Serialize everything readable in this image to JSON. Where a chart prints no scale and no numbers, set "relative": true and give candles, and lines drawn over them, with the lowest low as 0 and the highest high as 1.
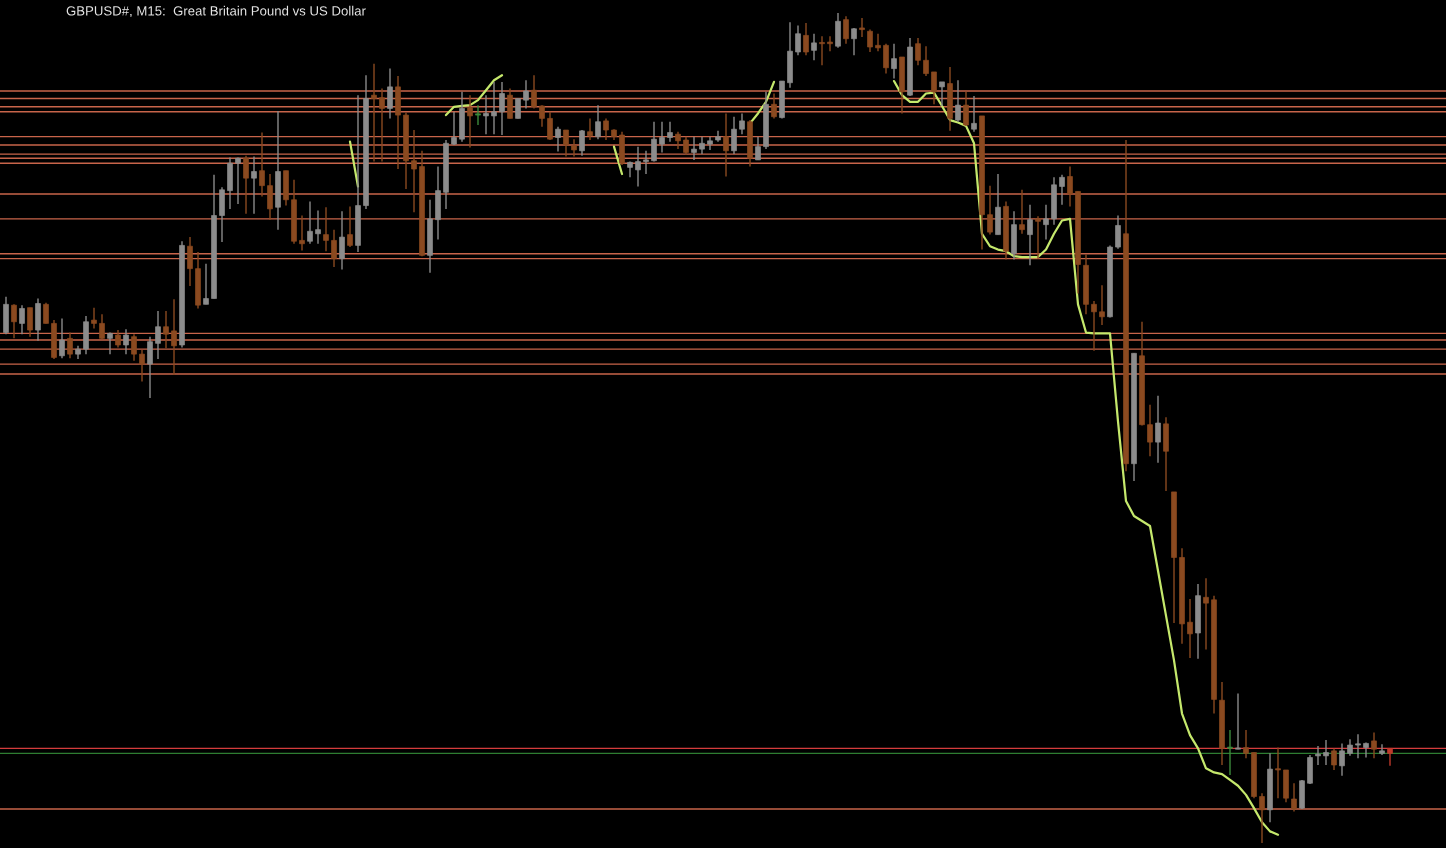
{
  "chart_data": {
    "type": "candlestick",
    "title": "GBPUSD#, M15:  Great Britain Pound vs US Dollar",
    "relative": true,
    "categories": [
      null,
      null,
      null,
      null,
      null,
      null,
      null,
      null,
      null,
      null,
      null,
      null,
      null,
      null,
      null,
      null,
      null,
      null,
      null,
      null,
      null,
      null,
      null,
      null,
      null,
      null,
      null,
      null,
      null,
      null,
      null,
      null,
      null,
      null,
      null,
      null,
      null,
      null,
      null,
      null,
      null,
      null,
      null,
      null,
      null,
      null,
      null,
      null,
      null,
      null,
      null,
      null,
      null,
      null,
      null,
      null,
      null,
      null,
      null,
      null,
      null,
      null,
      null,
      null,
      null,
      null,
      null,
      null,
      null,
      null,
      null,
      null,
      null,
      null,
      null,
      null,
      null,
      null,
      null,
      null,
      null,
      null,
      null,
      null,
      null,
      null,
      null,
      null,
      null,
      null,
      null,
      null,
      null,
      null,
      null,
      null,
      null,
      null,
      null,
      null,
      null,
      null,
      null,
      null,
      null,
      null,
      null,
      null,
      null,
      null,
      null,
      null,
      null,
      null,
      null,
      null,
      null,
      null,
      null,
      null,
      null,
      null,
      null,
      null,
      null,
      null,
      null,
      null,
      null,
      null,
      null,
      null,
      null,
      null,
      null,
      null,
      null,
      null,
      null,
      null,
      null,
      null,
      null,
      null,
      null,
      null,
      null,
      null,
      null,
      null,
      null,
      null,
      null,
      null,
      null,
      null,
      null,
      null,
      null,
      null,
      null,
      null,
      null,
      null,
      null,
      null,
      null,
      null,
      null,
      null,
      null,
      null,
      null,
      null
    ],
    "ohlc": [
      [
        0.615,
        0.658,
        0.613,
        0.649
      ],
      [
        0.648,
        0.649,
        0.608,
        0.628
      ],
      [
        0.626,
        0.648,
        0.613,
        0.644
      ],
      [
        0.645,
        0.645,
        0.61,
        0.618
      ],
      [
        0.618,
        0.656,
        0.605,
        0.65
      ],
      [
        0.649,
        0.651,
        0.626,
        0.626
      ],
      [
        0.626,
        0.63,
        0.583,
        0.585
      ],
      [
        0.587,
        0.632,
        0.584,
        0.606
      ],
      [
        0.608,
        0.615,
        0.584,
        0.589
      ],
      [
        0.589,
        0.599,
        0.583,
        0.595
      ],
      [
        0.595,
        0.635,
        0.589,
        0.628
      ],
      [
        0.63,
        0.645,
        0.62,
        0.626
      ],
      [
        0.626,
        0.637,
        0.607,
        0.608
      ],
      [
        0.608,
        0.615,
        0.589,
        0.614
      ],
      [
        0.612,
        0.618,
        0.597,
        0.6
      ],
      [
        0.6,
        0.619,
        0.589,
        0.612
      ],
      [
        0.61,
        0.613,
        0.581,
        0.589
      ],
      [
        0.589,
        0.594,
        0.556,
        0.577
      ],
      [
        0.577,
        0.61,
        0.536,
        0.604
      ],
      [
        0.602,
        0.641,
        0.583,
        0.622
      ],
      [
        0.622,
        0.641,
        0.596,
        0.613
      ],
      [
        0.617,
        0.655,
        0.564,
        0.599
      ],
      [
        0.6,
        0.725,
        0.597,
        0.72
      ],
      [
        0.719,
        0.73,
        0.671,
        0.692
      ],
      [
        0.692,
        0.712,
        0.644,
        0.648
      ],
      [
        0.649,
        0.698,
        0.649,
        0.656
      ],
      [
        0.656,
        0.805,
        0.656,
        0.756
      ],
      [
        0.756,
        0.79,
        0.724,
        0.787
      ],
      [
        0.786,
        0.826,
        0.764,
        0.819
      ],
      [
        0.819,
        0.826,
        0.77,
        0.825
      ],
      [
        0.825,
        0.828,
        0.758,
        0.801
      ],
      [
        0.801,
        0.827,
        0.758,
        0.809
      ],
      [
        0.81,
        0.856,
        0.779,
        0.792
      ],
      [
        0.792,
        0.806,
        0.751,
        0.764
      ],
      [
        0.766,
        0.882,
        0.739,
        0.809
      ],
      [
        0.81,
        0.81,
        0.768,
        0.775
      ],
      [
        0.775,
        0.799,
        0.722,
        0.725
      ],
      [
        0.726,
        0.756,
        0.714,
        0.722
      ],
      [
        0.725,
        0.773,
        0.722,
        0.737
      ],
      [
        0.734,
        0.762,
        0.722,
        0.739
      ],
      [
        0.733,
        0.766,
        0.713,
        0.726
      ],
      [
        0.726,
        0.739,
        0.694,
        0.704
      ],
      [
        0.704,
        0.761,
        0.691,
        0.73
      ],
      [
        0.733,
        0.767,
        0.718,
        0.72
      ],
      [
        0.72,
        0.901,
        0.712,
        0.768
      ],
      [
        0.768,
        0.925,
        0.764,
        0.897
      ],
      [
        0.901,
        0.939,
        0.821,
        0.897
      ],
      [
        0.898,
        0.909,
        0.821,
        0.885
      ],
      [
        0.885,
        0.933,
        0.873,
        0.911
      ],
      [
        0.911,
        0.924,
        0.812,
        0.877
      ],
      [
        0.877,
        0.88,
        0.788,
        0.822
      ],
      [
        0.822,
        0.859,
        0.76,
        0.812
      ],
      [
        0.815,
        0.834,
        0.707,
        0.708
      ],
      [
        0.708,
        0.775,
        0.687,
        0.752
      ],
      [
        0.751,
        0.815,
        0.727,
        0.786
      ],
      [
        0.784,
        0.847,
        0.764,
        0.843
      ],
      [
        0.842,
        0.881,
        0.841,
        0.85
      ],
      [
        0.848,
        0.905,
        0.845,
        0.885
      ],
      [
        0.886,
        0.901,
        0.838,
        0.876
      ],
      [
        0.877,
        0.889,
        0.865,
        0.877
      ],
      [
        0.876,
        0.901,
        0.854,
        0.879
      ],
      [
        0.876,
        0.917,
        0.854,
        0.881
      ],
      [
        0.881,
        0.917,
        0.853,
        0.903
      ],
      [
        0.901,
        0.909,
        0.873,
        0.873
      ],
      [
        0.873,
        0.897,
        0.873,
        0.897
      ],
      [
        0.895,
        0.919,
        0.885,
        0.906
      ],
      [
        0.907,
        0.925,
        0.885,
        0.887
      ],
      [
        0.888,
        0.889,
        0.863,
        0.873
      ],
      [
        0.873,
        0.881,
        0.847,
        0.848
      ],
      [
        0.85,
        0.863,
        0.833,
        0.86
      ],
      [
        0.859,
        0.859,
        0.827,
        0.841
      ],
      [
        0.84,
        0.848,
        0.827,
        0.835
      ],
      [
        0.834,
        0.859,
        0.828,
        0.858
      ],
      [
        0.857,
        0.873,
        0.847,
        0.852
      ],
      [
        0.851,
        0.889,
        0.848,
        0.869
      ],
      [
        0.87,
        0.873,
        0.847,
        0.859
      ],
      [
        0.859,
        0.86,
        0.847,
        0.851
      ],
      [
        0.853,
        0.857,
        0.817,
        0.819
      ],
      [
        0.814,
        0.821,
        0.802,
        0.82
      ],
      [
        0.811,
        0.839,
        0.791,
        0.821
      ],
      [
        0.821,
        0.834,
        0.806,
        0.823
      ],
      [
        0.822,
        0.869,
        0.821,
        0.848
      ],
      [
        0.842,
        0.869,
        0.832,
        0.85
      ],
      [
        0.85,
        0.869,
        0.845,
        0.856
      ],
      [
        0.854,
        0.857,
        0.836,
        0.846
      ],
      [
        0.847,
        0.851,
        0.829,
        0.832
      ],
      [
        0.832,
        0.851,
        0.823,
        0.836
      ],
      [
        0.836,
        0.851,
        0.83,
        0.843
      ],
      [
        0.842,
        0.851,
        0.835,
        0.846
      ],
      [
        0.847,
        0.858,
        0.845,
        0.851
      ],
      [
        0.851,
        0.879,
        0.803,
        0.834
      ],
      [
        0.834,
        0.875,
        0.83,
        0.86
      ],
      [
        0.86,
        0.879,
        0.854,
        0.87
      ],
      [
        0.869,
        0.871,
        0.815,
        0.825
      ],
      [
        0.823,
        0.851,
        0.823,
        0.839
      ],
      [
        0.839,
        0.905,
        0.836,
        0.89
      ],
      [
        0.89,
        0.903,
        0.873,
        0.875
      ],
      [
        0.874,
        0.918,
        0.873,
        0.918
      ],
      [
        0.916,
        0.989,
        0.91,
        0.954
      ],
      [
        0.953,
        0.985,
        0.949,
        0.975
      ],
      [
        0.973,
        0.988,
        0.949,
        0.953
      ],
      [
        0.955,
        0.975,
        0.943,
        0.964
      ],
      [
        0.964,
        0.972,
        0.937,
        0.963
      ],
      [
        0.965,
        0.972,
        0.954,
        0.963
      ],
      [
        0.96,
        1.0,
        0.958,
        0.99
      ],
      [
        0.992,
        0.996,
        0.963,
        0.969
      ],
      [
        0.969,
        0.982,
        0.949,
        0.981
      ],
      [
        0.982,
        0.994,
        0.971,
        0.98
      ],
      [
        0.978,
        0.98,
        0.953,
        0.959
      ],
      [
        0.961,
        0.975,
        0.954,
        0.958
      ],
      [
        0.961,
        0.963,
        0.927,
        0.934
      ],
      [
        0.933,
        0.963,
        0.921,
        0.945
      ],
      [
        0.947,
        0.947,
        0.879,
        0.905
      ],
      [
        0.901,
        0.97,
        0.9,
        0.959
      ],
      [
        0.963,
        0.97,
        0.937,
        0.943
      ],
      [
        0.943,
        0.96,
        0.924,
        0.927
      ],
      [
        0.929,
        0.929,
        0.89,
        0.905
      ],
      [
        0.911,
        0.917,
        0.888,
        0.917
      ],
      [
        0.915,
        0.935,
        0.858,
        0.873
      ],
      [
        0.871,
        0.919,
        0.869,
        0.889
      ],
      [
        0.889,
        0.905,
        0.864,
        0.865
      ],
      [
        0.86,
        0.9,
        0.857,
        0.867
      ],
      [
        0.876,
        0.876,
        0.715,
        0.757
      ],
      [
        0.757,
        0.792,
        0.733,
        0.736
      ],
      [
        0.733,
        0.806,
        0.733,
        0.766
      ],
      [
        0.767,
        0.773,
        0.703,
        0.713
      ],
      [
        0.71,
        0.761,
        0.703,
        0.745
      ],
      [
        0.745,
        0.787,
        0.734,
        0.739
      ],
      [
        0.733,
        0.769,
        0.696,
        0.751
      ],
      [
        0.752,
        0.755,
        0.704,
        0.749
      ],
      [
        0.745,
        0.769,
        0.727,
        0.752
      ],
      [
        0.752,
        0.802,
        0.745,
        0.793
      ],
      [
        0.791,
        0.805,
        0.769,
        0.802
      ],
      [
        0.803,
        0.815,
        0.767,
        0.782
      ],
      [
        0.785,
        0.785,
        0.662,
        0.697
      ],
      [
        0.696,
        0.709,
        0.637,
        0.649
      ],
      [
        0.649,
        0.653,
        0.593,
        0.64
      ],
      [
        0.64,
        0.672,
        0.624,
        0.634
      ],
      [
        0.634,
        0.72,
        0.633,
        0.718
      ],
      [
        0.718,
        0.756,
        0.716,
        0.744
      ],
      [
        0.734,
        0.847,
        0.448,
        0.457
      ],
      [
        0.457,
        0.59,
        0.436,
        0.59
      ],
      [
        0.587,
        0.628,
        0.503,
        0.504
      ],
      [
        0.504,
        0.528,
        0.466,
        0.483
      ],
      [
        0.483,
        0.539,
        0.458,
        0.506
      ],
      [
        0.505,
        0.513,
        0.424,
        0.472
      ],
      [
        0.423,
        0.423,
        0.265,
        0.344
      ],
      [
        0.344,
        0.355,
        0.24,
        0.264
      ],
      [
        0.266,
        0.294,
        0.223,
        0.252
      ],
      [
        0.253,
        0.312,
        0.222,
        0.298
      ],
      [
        0.296,
        0.319,
        0.233,
        0.289
      ],
      [
        0.293,
        0.298,
        0.156,
        0.173
      ],
      [
        0.172,
        0.194,
        0.094,
        0.114
      ],
      [
        0.114,
        0.136,
        0.082,
        0.114
      ],
      [
        0.113,
        0.18,
        0.113,
        0.114
      ],
      [
        0.115,
        0.136,
        0.102,
        0.108
      ],
      [
        0.109,
        0.109,
        0.054,
        0.056
      ],
      [
        0.056,
        0.06,
        0.0,
        0.04
      ],
      [
        0.04,
        0.108,
        0.025,
        0.089
      ],
      [
        0.089,
        0.115,
        0.054,
        0.088
      ],
      [
        0.088,
        0.088,
        0.049,
        0.054
      ],
      [
        0.053,
        0.072,
        0.038,
        0.041
      ],
      [
        0.042,
        0.076,
        0.041,
        0.075
      ],
      [
        0.072,
        0.106,
        0.071,
        0.103
      ],
      [
        0.105,
        0.117,
        0.094,
        0.107
      ],
      [
        0.105,
        0.124,
        0.094,
        0.109
      ],
      [
        0.111,
        0.114,
        0.088,
        0.094
      ],
      [
        0.093,
        0.12,
        0.081,
        0.111
      ],
      [
        0.108,
        0.125,
        0.105,
        0.118
      ],
      [
        0.118,
        0.131,
        0.102,
        0.118
      ],
      [
        0.115,
        0.121,
        0.103,
        0.12
      ],
      [
        0.123,
        0.133,
        0.102,
        0.113
      ],
      [
        0.108,
        0.119,
        0.106,
        0.111
      ],
      [
        0.114,
        0.114,
        0.093,
        0.108
      ]
    ],
    "colors": [
      "#8c8c8c",
      "#8b4a20",
      "#8c8c8c",
      "#8b4a20",
      "#8c8c8c",
      "#8b4a20",
      "#8b4a20",
      "#8c8c8c",
      "#8b4a20",
      "#8c8c8c",
      "#8c8c8c",
      "#8b4a20",
      "#8b4a20",
      "#8c8c8c",
      "#8b4a20",
      "#8c8c8c",
      "#8b4a20",
      "#8b4a20",
      "#8c8c8c",
      "#8c8c8c",
      "#8b4a20",
      "#8b4a20",
      "#8c8c8c",
      "#8b4a20",
      "#8b4a20",
      "#8c8c8c",
      "#8c8c8c",
      "#8c8c8c",
      "#8c8c8c",
      "#8c8c8c",
      "#8b4a20",
      "#8c8c8c",
      "#8b4a20",
      "#8b4a20",
      "#8c8c8c",
      "#8b4a20",
      "#8b4a20",
      "#8b4a20",
      "#8c8c8c",
      "#8c8c8c",
      "#8b4a20",
      "#8b4a20",
      "#8c8c8c",
      "#8b4a20",
      "#8c8c8c",
      "#8c8c8c",
      "#8b4a20",
      "#8b4a20",
      "#8c8c8c",
      "#8b4a20",
      "#8b4a20",
      "#8b4a20",
      "#8b4a20",
      "#8c8c8c",
      "#8c8c8c",
      "#8c8c8c",
      "#8c8c8c",
      "#8c8c8c",
      "#8b4a20",
      "#3c8c3c",
      "#8c8c8c",
      "#8c8c8c",
      "#8c8c8c",
      "#8b4a20",
      "#8c8c8c",
      "#8c8c8c",
      "#8b4a20",
      "#8b4a20",
      "#8b4a20",
      "#8c8c8c",
      "#8b4a20",
      "#8b4a20",
      "#8c8c8c",
      "#8b4a20",
      "#8c8c8c",
      "#8b4a20",
      "#8b4a20",
      "#8b4a20",
      "#8c8c8c",
      "#8c8c8c",
      "#8c8c8c",
      "#8c8c8c",
      "#8c8c8c",
      "#8c8c8c",
      "#8b4a20",
      "#8b4a20",
      "#8c8c8c",
      "#8c8c8c",
      "#8c8c8c",
      "#8c8c8c",
      "#8b4a20",
      "#8c8c8c",
      "#8c8c8c",
      "#8b4a20",
      "#8c8c8c",
      "#8c8c8c",
      "#8b4a20",
      "#8c8c8c",
      "#8c8c8c",
      "#8c8c8c",
      "#8b4a20",
      "#8c8c8c",
      "#8b4a20",
      "#8b4a20",
      "#8c8c8c",
      "#8b4a20",
      "#8c8c8c",
      "#8b4a20",
      "#8b4a20",
      "#8b4a20",
      "#8b4a20",
      "#8c8c8c",
      "#8b4a20",
      "#8c8c8c",
      "#8b4a20",
      "#8b4a20",
      "#8b4a20",
      "#8c8c8c",
      "#8b4a20",
      "#8c8c8c",
      "#8b4a20",
      "#8c8c8c",
      "#8b4a20",
      "#8b4a20",
      "#8c8c8c",
      "#8b4a20",
      "#8c8c8c",
      "#8b4a20",
      "#8c8c8c",
      "#8b4a20",
      "#8c8c8c",
      "#8c8c8c",
      "#8c8c8c",
      "#8b4a20",
      "#8b4a20",
      "#8b4a20",
      "#8b4a20",
      "#8b4a20",
      "#8c8c8c",
      "#8c8c8c",
      "#8b4a20",
      "#8c8c8c",
      "#8b4a20",
      "#8b4a20",
      "#8c8c8c",
      "#8b4a20",
      "#8b4a20",
      "#8b4a20",
      "#8b4a20",
      "#8c8c8c",
      "#8b4a20",
      "#8b4a20",
      "#8b4a20",
      "#3c8c3c",
      "#8c8c8c",
      "#8b4a20",
      "#8b4a20",
      "#8b4a20",
      "#8c8c8c",
      "#8b4a20",
      "#8b4a20",
      "#8b4a20",
      "#8c8c8c",
      "#8c8c8c",
      "#8c8c8c",
      "#8c8c8c",
      "#8b4a20",
      "#8c8c8c",
      "#8c8c8c",
      "#8c8c8c",
      "#8c8c8c",
      "#8b4a20",
      "#8c8c8c",
      "#c0392b"
    ],
    "series": [
      {
        "type": "line",
        "color": "#c5e86c",
        "values": [
          null,
          null,
          null,
          null,
          null,
          null,
          null,
          null,
          null,
          null,
          null,
          null,
          null,
          null,
          null,
          null,
          null,
          null,
          null,
          null,
          null,
          null,
          null,
          null,
          null,
          null,
          null,
          null,
          null,
          null,
          null,
          null,
          null,
          null,
          null,
          null,
          null,
          null,
          null,
          null,
          null,
          null,
          null,
          0.845,
          0.791,
          null,
          null,
          null,
          null,
          null,
          null,
          null,
          null,
          null,
          null,
          0.877,
          0.887,
          0.888,
          0.889,
          0.895,
          0.907,
          0.919,
          0.925,
          null,
          null,
          null,
          null,
          null,
          null,
          null,
          null,
          null,
          null,
          null,
          null,
          null,
          0.839,
          0.806,
          null,
          null,
          null,
          null,
          null,
          null,
          null,
          null,
          null,
          null,
          null,
          null,
          null,
          null,
          null,
          0.867,
          0.879,
          0.893,
          0.917,
          null,
          null,
          null,
          null,
          null,
          null,
          null,
          null,
          null,
          null,
          null,
          null,
          null,
          null,
          0.918,
          0.901,
          0.893,
          0.893,
          0.903,
          0.904,
          0.888,
          0.871,
          0.868,
          0.864,
          0.843,
          0.734,
          0.719,
          0.715,
          0.713,
          0.707,
          0.706,
          0.706,
          0.706,
          0.715,
          0.734,
          0.75,
          0.752,
          0.649,
          0.615,
          0.614,
          0.614,
          0.614,
          0.508,
          0.412,
          0.394,
          0.388,
          0.382,
          0.328,
          0.274,
          0.22,
          0.156,
          0.13,
          0.114,
          0.09,
          0.085,
          0.083,
          0.076,
          0.069,
          0.058,
          0.042,
          0.025,
          0.014,
          0.01,
          null,
          null,
          null,
          null,
          null,
          null,
          null,
          null,
          null,
          null,
          null,
          null,
          null,
          null
        ]
      }
    ],
    "ref_lines": [
      {
        "axis": "y",
        "value": 0.906,
        "color": "#c8644a"
      },
      {
        "axis": "y",
        "value": 0.897,
        "color": "#c8644a"
      },
      {
        "axis": "y",
        "value": 0.887,
        "color": "#c8644a"
      },
      {
        "axis": "y",
        "value": 0.881,
        "color": "#c8644a"
      },
      {
        "axis": "y",
        "value": 0.851,
        "color": "#c8644a"
      },
      {
        "axis": "y",
        "value": 0.841,
        "color": "#c8644a"
      },
      {
        "axis": "y",
        "value": 0.83,
        "color": "#c8644a"
      },
      {
        "axis": "y",
        "value": 0.825,
        "color": "#c8644a"
      },
      {
        "axis": "y",
        "value": 0.819,
        "color": "#c8644a"
      },
      {
        "axis": "y",
        "value": 0.782,
        "color": "#c8644a"
      },
      {
        "axis": "y",
        "value": 0.752,
        "color": "#c8644a"
      },
      {
        "axis": "y",
        "value": 0.71,
        "color": "#c8644a"
      },
      {
        "axis": "y",
        "value": 0.704,
        "color": "#c8644a"
      },
      {
        "axis": "y",
        "value": 0.614,
        "color": "#c8644a"
      },
      {
        "axis": "y",
        "value": 0.606,
        "color": "#c8644a"
      },
      {
        "axis": "y",
        "value": 0.595,
        "color": "#c8644a"
      },
      {
        "axis": "y",
        "value": 0.577,
        "color": "#c8644a"
      },
      {
        "axis": "y",
        "value": 0.565,
        "color": "#c8644a"
      },
      {
        "axis": "y",
        "value": 0.114,
        "color": "#d43c3c"
      },
      {
        "axis": "y",
        "value": 0.108,
        "color": "#2e7d32"
      },
      {
        "axis": "y",
        "value": 0.041,
        "color": "#c8644a"
      }
    ]
  }
}
